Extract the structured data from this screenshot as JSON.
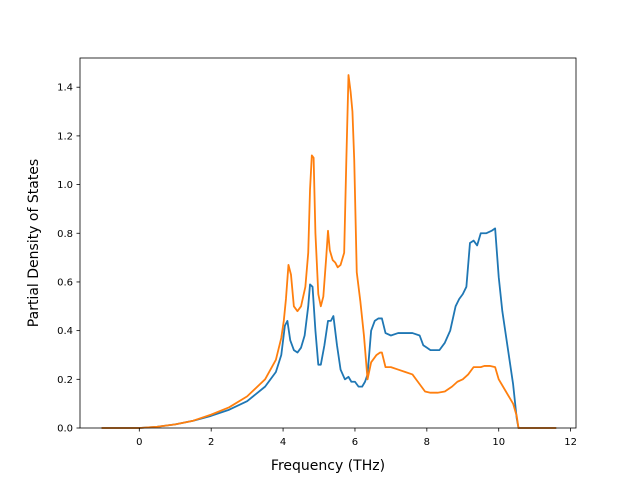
{
  "chart_data": {
    "type": "line",
    "title": "",
    "xlabel": "Frequency (THz)",
    "ylabel": "Partial Density of States",
    "xlim": [
      -1.65,
      12.15
    ],
    "ylim": [
      0.0,
      1.52
    ],
    "xticks": [
      0,
      2,
      4,
      6,
      8,
      10,
      12
    ],
    "yticks": [
      0.0,
      0.2,
      0.4,
      0.6,
      0.8,
      1.0,
      1.2,
      1.4
    ],
    "xtick_labels": [
      "0",
      "2",
      "4",
      "6",
      "8",
      "10",
      "12"
    ],
    "ytick_labels": [
      "0.0",
      "0.2",
      "0.4",
      "0.6",
      "0.8",
      "1.0",
      "1.2",
      "1.4"
    ],
    "grid": false,
    "legend": false,
    "series": [
      {
        "color": "#1f77b4",
        "x": [
          -1.05,
          0.0,
          0.5,
          1.0,
          1.5,
          2.0,
          2.5,
          3.0,
          3.5,
          3.8,
          3.95,
          4.05,
          4.12,
          4.2,
          4.3,
          4.4,
          4.5,
          4.6,
          4.7,
          4.75,
          4.82,
          4.9,
          4.98,
          5.05,
          5.15,
          5.25,
          5.33,
          5.4,
          5.5,
          5.6,
          5.72,
          5.82,
          5.9,
          6.0,
          6.1,
          6.2,
          6.28,
          6.35,
          6.45,
          6.55,
          6.65,
          6.75,
          6.85,
          7.0,
          7.2,
          7.4,
          7.6,
          7.8,
          7.9,
          8.0,
          8.1,
          8.2,
          8.35,
          8.5,
          8.65,
          8.8,
          8.9,
          9.0,
          9.1,
          9.2,
          9.3,
          9.4,
          9.5,
          9.65,
          9.8,
          9.9,
          10.0,
          10.1,
          10.2,
          10.3,
          10.4,
          10.5,
          10.55,
          11.6
        ],
        "y": [
          0.0,
          0.0,
          0.005,
          0.015,
          0.03,
          0.05,
          0.075,
          0.11,
          0.17,
          0.23,
          0.3,
          0.42,
          0.44,
          0.36,
          0.32,
          0.31,
          0.33,
          0.38,
          0.5,
          0.59,
          0.58,
          0.4,
          0.26,
          0.26,
          0.34,
          0.44,
          0.44,
          0.46,
          0.34,
          0.24,
          0.2,
          0.21,
          0.19,
          0.19,
          0.17,
          0.17,
          0.19,
          0.22,
          0.4,
          0.44,
          0.45,
          0.45,
          0.39,
          0.38,
          0.39,
          0.39,
          0.39,
          0.38,
          0.34,
          0.33,
          0.32,
          0.32,
          0.32,
          0.35,
          0.4,
          0.5,
          0.53,
          0.55,
          0.58,
          0.76,
          0.77,
          0.75,
          0.8,
          0.8,
          0.81,
          0.82,
          0.62,
          0.48,
          0.38,
          0.28,
          0.18,
          0.04,
          0.0,
          0.0
        ]
      },
      {
        "color": "#ff7f0e",
        "x": [
          -1.05,
          0.0,
          0.5,
          1.0,
          1.5,
          2.0,
          2.5,
          3.0,
          3.5,
          3.8,
          3.95,
          4.02,
          4.08,
          4.15,
          4.22,
          4.3,
          4.4,
          4.5,
          4.62,
          4.7,
          4.75,
          4.8,
          4.85,
          4.9,
          4.98,
          5.05,
          5.12,
          5.2,
          5.25,
          5.3,
          5.38,
          5.45,
          5.52,
          5.6,
          5.7,
          5.76,
          5.82,
          5.88,
          5.93,
          5.98,
          6.05,
          6.15,
          6.25,
          6.35,
          6.45,
          6.6,
          6.7,
          6.75,
          6.85,
          7.0,
          7.2,
          7.4,
          7.6,
          7.75,
          7.85,
          7.95,
          8.1,
          8.3,
          8.5,
          8.7,
          8.85,
          9.0,
          9.15,
          9.3,
          9.4,
          9.5,
          9.6,
          9.75,
          9.9,
          10.0,
          10.2,
          10.4,
          10.5,
          10.55,
          11.6
        ],
        "y": [
          0.0,
          0.0,
          0.005,
          0.015,
          0.03,
          0.055,
          0.085,
          0.13,
          0.2,
          0.28,
          0.37,
          0.44,
          0.53,
          0.67,
          0.63,
          0.5,
          0.48,
          0.5,
          0.58,
          0.72,
          0.98,
          1.12,
          1.11,
          0.8,
          0.55,
          0.5,
          0.54,
          0.7,
          0.81,
          0.73,
          0.69,
          0.68,
          0.66,
          0.67,
          0.72,
          1.1,
          1.45,
          1.38,
          1.3,
          1.1,
          0.64,
          0.52,
          0.38,
          0.2,
          0.27,
          0.3,
          0.31,
          0.31,
          0.25,
          0.25,
          0.24,
          0.23,
          0.22,
          0.19,
          0.17,
          0.15,
          0.145,
          0.145,
          0.15,
          0.17,
          0.19,
          0.2,
          0.22,
          0.25,
          0.25,
          0.25,
          0.255,
          0.255,
          0.25,
          0.2,
          0.15,
          0.1,
          0.05,
          0.0,
          0.0
        ]
      }
    ]
  }
}
